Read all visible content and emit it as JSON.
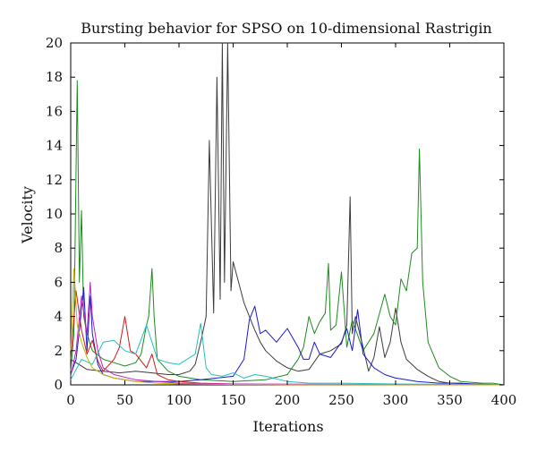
{
  "chart_data": {
    "type": "line",
    "title": "Bursting behavior for SPSO on 10-dimensional Rastrigin",
    "xlabel": "Iterations",
    "ylabel": "Velocity",
    "xlim": [
      0,
      400
    ],
    "ylim": [
      0,
      20
    ],
    "x_ticks": [
      "0",
      "50",
      "100",
      "150",
      "200",
      "250",
      "300",
      "350",
      "400"
    ],
    "y_ticks": [
      "0",
      "2",
      "4",
      "6",
      "8",
      "10",
      "12",
      "14",
      "16",
      "18",
      "20"
    ],
    "grid": false,
    "legend": "none",
    "series": [
      {
        "color": "#3c3c3c",
        "x": [
          0,
          15,
          30,
          45,
          60,
          75,
          90,
          100,
          110,
          115,
          120,
          125,
          128,
          132,
          135,
          138,
          140,
          142,
          145,
          148,
          150,
          155,
          160,
          165,
          170,
          175,
          180,
          190,
          200,
          210,
          220,
          230,
          240,
          250,
          255,
          258,
          260,
          263,
          270,
          275,
          280,
          285,
          290,
          295,
          300,
          305,
          310,
          320,
          330,
          340,
          350,
          400
        ],
        "values": [
          1.5,
          0.9,
          0.8,
          0.7,
          0.8,
          0.7,
          0.6,
          0.6,
          0.8,
          1.2,
          2.5,
          4.0,
          14.3,
          4.2,
          18.0,
          5.0,
          20.0,
          6.0,
          20.0,
          5.5,
          7.2,
          6.0,
          4.8,
          4.0,
          3.2,
          2.5,
          2.0,
          1.4,
          1.0,
          0.8,
          0.9,
          1.8,
          2.0,
          2.4,
          3.5,
          11.0,
          3.0,
          4.0,
          2.2,
          0.8,
          1.6,
          3.4,
          1.6,
          2.5,
          4.5,
          2.5,
          1.5,
          0.9,
          0.5,
          0.2,
          0.1,
          0.0
        ]
      },
      {
        "color": "#1f8a1f",
        "x": [
          0,
          3,
          6,
          8,
          10,
          12,
          15,
          20,
          30,
          40,
          50,
          60,
          65,
          70,
          72,
          75,
          77,
          80,
          90,
          100,
          120,
          150,
          180,
          200,
          210,
          215,
          220,
          225,
          230,
          235,
          238,
          240,
          245,
          250,
          255,
          260,
          270,
          280,
          290,
          295,
          300,
          305,
          310,
          315,
          320,
          322,
          325,
          330,
          340,
          350,
          360,
          380,
          390,
          400
        ],
        "values": [
          0.8,
          3.0,
          17.8,
          6.0,
          10.2,
          4.0,
          3.0,
          2.0,
          1.5,
          1.3,
          1.1,
          1.3,
          1.8,
          3.5,
          4.0,
          6.8,
          4.0,
          1.5,
          0.8,
          0.5,
          0.3,
          0.2,
          0.3,
          0.6,
          1.5,
          2.2,
          4.0,
          3.0,
          3.7,
          4.2,
          7.1,
          3.2,
          3.5,
          6.6,
          2.2,
          3.8,
          2.0,
          3.0,
          5.3,
          4.0,
          3.5,
          6.2,
          5.5,
          7.7,
          8.0,
          13.8,
          6.0,
          2.5,
          1.0,
          0.5,
          0.2,
          0.1,
          0.1,
          0.0
        ]
      },
      {
        "color": "#1a1ad0",
        "x": [
          0,
          5,
          8,
          12,
          15,
          18,
          20,
          25,
          30,
          40,
          50,
          60,
          80,
          100,
          120,
          150,
          160,
          165,
          170,
          175,
          180,
          190,
          200,
          210,
          215,
          220,
          225,
          230,
          240,
          250,
          255,
          260,
          265,
          270,
          280,
          290,
          300,
          310,
          320,
          340,
          360,
          380,
          400
        ],
        "values": [
          0.6,
          1.5,
          3.2,
          5.7,
          2.0,
          5.2,
          3.0,
          1.2,
          0.6,
          0.4,
          0.3,
          0.2,
          0.2,
          0.2,
          0.3,
          0.5,
          1.5,
          3.8,
          4.6,
          3.0,
          3.2,
          2.5,
          3.3,
          2.2,
          1.5,
          1.5,
          2.5,
          1.8,
          1.6,
          2.5,
          3.3,
          2.0,
          4.4,
          1.8,
          1.0,
          0.6,
          0.4,
          0.3,
          0.2,
          0.1,
          0.1,
          0.0,
          0.0
        ]
      },
      {
        "color": "#d01a1a",
        "x": [
          0,
          5,
          10,
          15,
          20,
          25,
          30,
          40,
          45,
          50,
          55,
          60,
          65,
          70,
          75,
          80,
          90,
          100,
          120,
          150,
          200,
          400
        ],
        "values": [
          1.5,
          5.5,
          3.2,
          1.8,
          2.6,
          1.4,
          0.8,
          1.5,
          2.2,
          4.0,
          2.0,
          1.8,
          1.4,
          1.0,
          1.8,
          0.6,
          0.3,
          0.2,
          0.1,
          0.05,
          0.0,
          0.0
        ]
      },
      {
        "color": "#20c0c0",
        "x": [
          0,
          10,
          20,
          30,
          40,
          50,
          60,
          70,
          75,
          80,
          90,
          100,
          110,
          115,
          120,
          125,
          130,
          140,
          150,
          160,
          170,
          180,
          200,
          220,
          250,
          300,
          400
        ],
        "values": [
          0.3,
          1.5,
          1.2,
          2.5,
          2.6,
          2.0,
          1.8,
          3.5,
          2.5,
          1.5,
          1.3,
          1.2,
          1.6,
          1.8,
          3.6,
          1.0,
          0.6,
          0.5,
          0.7,
          0.4,
          0.6,
          0.5,
          0.2,
          0.1,
          0.1,
          0.05,
          0.0
        ]
      },
      {
        "color": "#c020c0",
        "x": [
          0,
          5,
          10,
          15,
          18,
          20,
          25,
          30,
          40,
          60,
          80,
          100,
          150,
          400
        ],
        "values": [
          0.5,
          2.0,
          5.2,
          3.0,
          6.0,
          4.0,
          2.0,
          1.0,
          0.6,
          0.3,
          0.2,
          0.1,
          0.05,
          0.0
        ]
      },
      {
        "color": "#c8b400",
        "x": [
          0,
          3,
          6,
          10,
          15,
          20,
          30,
          40,
          60,
          80,
          100,
          150,
          400
        ],
        "values": [
          2.0,
          6.8,
          3.5,
          2.5,
          1.6,
          1.0,
          0.6,
          0.4,
          0.2,
          0.1,
          0.05,
          0.02,
          0.0
        ]
      }
    ]
  }
}
